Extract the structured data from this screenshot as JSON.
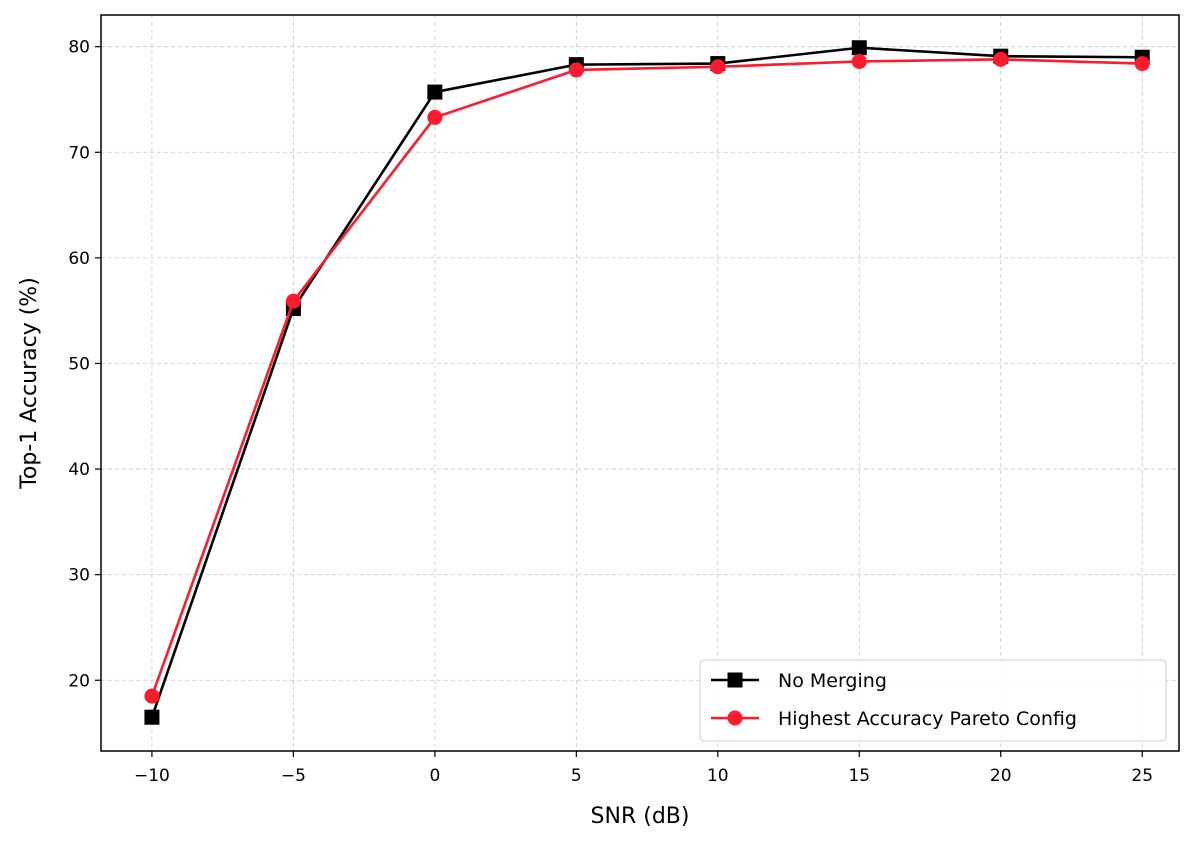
{
  "chart_data": {
    "type": "line",
    "xlabel": "SNR (dB)",
    "ylabel": "Top-1 Accuracy (%)",
    "x": [
      -10,
      -5,
      0,
      5,
      10,
      15,
      20,
      25
    ],
    "xticks": [
      -10,
      -5,
      0,
      5,
      10,
      15,
      20,
      25
    ],
    "xtick_labels": [
      "−10",
      "−5",
      "0",
      "5",
      "10",
      "15",
      "20",
      "25"
    ],
    "yticks": [
      20,
      30,
      40,
      50,
      60,
      70,
      80
    ],
    "xlim": [
      -11.8,
      26.3
    ],
    "ylim": [
      13.3,
      83.0
    ],
    "grid": true,
    "legend_position": "lower-right",
    "series": [
      {
        "name": "No Merging",
        "color": "#000000",
        "marker": "square",
        "values": [
          16.5,
          55.2,
          75.7,
          78.3,
          78.4,
          79.9,
          79.1,
          79.0
        ]
      },
      {
        "name": "Highest Accuracy Pareto Config",
        "color": "#ff1a2e",
        "marker": "circle",
        "values": [
          18.5,
          55.9,
          73.3,
          77.8,
          78.1,
          78.6,
          78.8,
          78.4
        ]
      }
    ]
  }
}
